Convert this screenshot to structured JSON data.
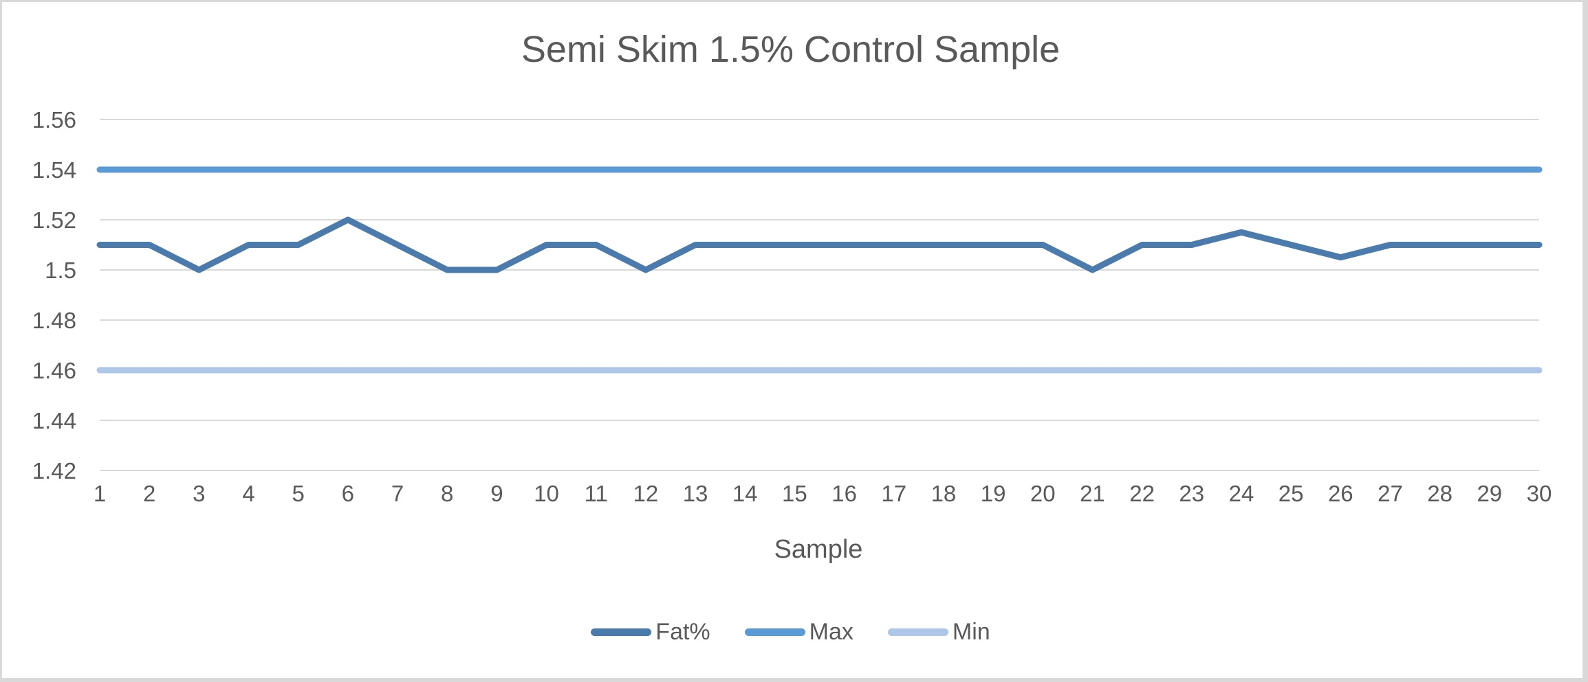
{
  "page": {
    "background": "#ffffff",
    "frame_color": "#d9d9d9",
    "text_color": "#595959",
    "gridline_color": "#d9d9d9"
  },
  "chart_data": {
    "type": "line",
    "title": "Semi Skim 1.5% Control Sample",
    "xlabel": "Sample",
    "ylabel": "",
    "x": [
      1,
      2,
      3,
      4,
      5,
      6,
      7,
      8,
      9,
      10,
      11,
      12,
      13,
      14,
      15,
      16,
      17,
      18,
      19,
      20,
      21,
      22,
      23,
      24,
      25,
      26,
      27,
      28,
      29,
      30
    ],
    "series": [
      {
        "name": "Fat%",
        "color": "#4a7bac",
        "values": [
          1.51,
          1.51,
          1.5,
          1.51,
          1.51,
          1.52,
          1.51,
          1.5,
          1.5,
          1.51,
          1.51,
          1.5,
          1.51,
          1.51,
          1.51,
          1.51,
          1.51,
          1.51,
          1.51,
          1.51,
          1.5,
          1.51,
          1.51,
          1.515,
          1.51,
          1.505,
          1.51,
          1.51,
          1.51,
          1.51
        ]
      },
      {
        "name": "Max",
        "color": "#5b9bd5",
        "values": [
          1.54,
          1.54,
          1.54,
          1.54,
          1.54,
          1.54,
          1.54,
          1.54,
          1.54,
          1.54,
          1.54,
          1.54,
          1.54,
          1.54,
          1.54,
          1.54,
          1.54,
          1.54,
          1.54,
          1.54,
          1.54,
          1.54,
          1.54,
          1.54,
          1.54,
          1.54,
          1.54,
          1.54,
          1.54,
          1.54
        ]
      },
      {
        "name": "Min",
        "color": "#aec7e8",
        "values": [
          1.46,
          1.46,
          1.46,
          1.46,
          1.46,
          1.46,
          1.46,
          1.46,
          1.46,
          1.46,
          1.46,
          1.46,
          1.46,
          1.46,
          1.46,
          1.46,
          1.46,
          1.46,
          1.46,
          1.46,
          1.46,
          1.46,
          1.46,
          1.46,
          1.46,
          1.46,
          1.46,
          1.46,
          1.46,
          1.46
        ]
      }
    ],
    "ylim": [
      1.42,
      1.56
    ],
    "yticks": [
      "1.56",
      "1.54",
      "1.52",
      "1.5",
      "1.48",
      "1.46",
      "1.44",
      "1.42"
    ],
    "grid": true,
    "legend_position": "bottom"
  }
}
